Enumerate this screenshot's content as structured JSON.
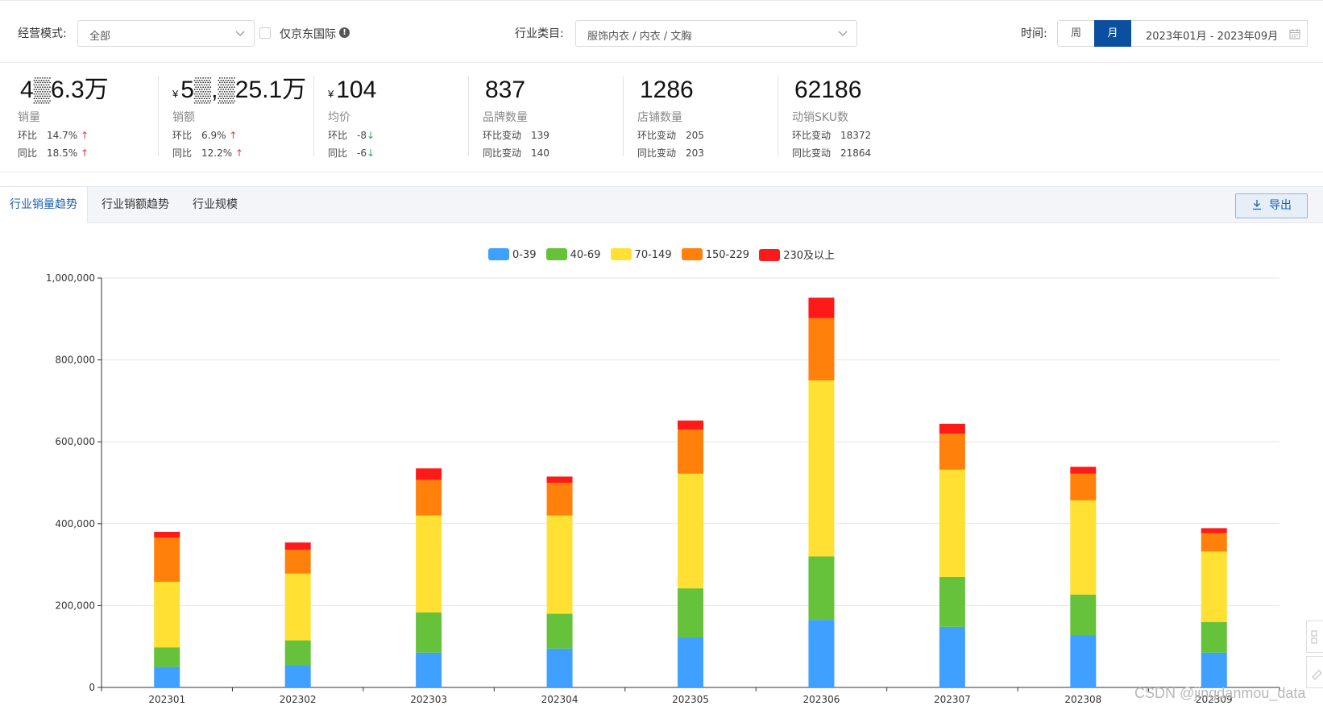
{
  "filters": {
    "mode_label": "经营模式:",
    "mode_value": "全部",
    "jd_intl_label": "仅京东国际",
    "jd_intl_info": "!",
    "category_label": "行业类目:",
    "category_value": "服饰内衣 / 内衣 / 文胸",
    "time_label": "时间:",
    "week_label": "周",
    "month_label": "月",
    "date_range": "2023年01月 - 2023年09月"
  },
  "stats": [
    {
      "value": "4▒6.3万",
      "currency": "",
      "name": "销量",
      "row1_k": "环比",
      "row1_v": "14.7%",
      "row1_dir": "↑",
      "row2_k": "同比",
      "row2_v": "18.5%",
      "row2_dir": "↑"
    },
    {
      "value": "5▒,▒25.1万",
      "currency": "¥",
      "name": "销额",
      "row1_k": "环比",
      "row1_v": "6.9%",
      "row1_dir": "↑",
      "row2_k": "同比",
      "row2_v": "12.2%",
      "row2_dir": "↑"
    },
    {
      "value": "104",
      "currency": "¥",
      "name": "均价",
      "row1_k": "环比",
      "row1_v": "-8",
      "row1_dir": "↓",
      "row2_k": "同比",
      "row2_v": "-6",
      "row2_dir": "↓"
    },
    {
      "value": "837",
      "currency": "",
      "name": "品牌数量",
      "row1_k": "环比变动",
      "row1_v": "139",
      "row1_dir": "",
      "row2_k": "同比变动",
      "row2_v": "140",
      "row2_dir": ""
    },
    {
      "value": "1286",
      "currency": "",
      "name": "店铺数量",
      "row1_k": "环比变动",
      "row1_v": "205",
      "row1_dir": "",
      "row2_k": "同比变动",
      "row2_v": "203",
      "row2_dir": ""
    },
    {
      "value": "62186",
      "currency": "",
      "name": "动销SKU数",
      "row1_k": "环比变动",
      "row1_v": "18372",
      "row1_dir": "",
      "row2_k": "同比变动",
      "row2_v": "21864",
      "row2_dir": ""
    }
  ],
  "tabs": [
    "行业销量趋势",
    "行业销额趋势",
    "行业规模"
  ],
  "export_label": "导出",
  "colors": {
    "accent": "#0a4fa0",
    "s0": "#3fa0ff",
    "s1": "#66c23a",
    "s2": "#ffe033",
    "s3": "#ff800b",
    "s4": "#ff1a1a"
  },
  "chart_data": {
    "type": "bar",
    "stacked": true,
    "categories": [
      "202301",
      "202302",
      "202303",
      "202304",
      "202305",
      "202306",
      "202307",
      "202308",
      "202309"
    ],
    "series": [
      {
        "name": "0-39",
        "values": [
          50000,
          55000,
          85000,
          95000,
          122000,
          165000,
          148000,
          127000,
          85000
        ]
      },
      {
        "name": "40-69",
        "values": [
          48000,
          60000,
          98000,
          85000,
          120000,
          155000,
          122000,
          100000,
          75000
        ]
      },
      {
        "name": "70-149",
        "values": [
          160000,
          163000,
          237000,
          240000,
          280000,
          430000,
          262000,
          230000,
          172000
        ]
      },
      {
        "name": "150-229",
        "values": [
          108000,
          58000,
          87000,
          80000,
          108000,
          152000,
          88000,
          65000,
          45000
        ]
      },
      {
        "name": "230及以上",
        "values": [
          14000,
          18000,
          28000,
          15000,
          22000,
          50000,
          24000,
          17000,
          12000
        ]
      }
    ],
    "ylim": [
      0,
      1000000
    ],
    "yticks": [
      0,
      200000,
      400000,
      600000,
      800000,
      1000000
    ],
    "ytick_labels": [
      "0",
      "200,000",
      "400,000",
      "600,000",
      "800,000",
      "1,000,000"
    ],
    "legend_position": "top-center",
    "grid": true
  },
  "watermark": "CSDN @jingdanmou_data"
}
